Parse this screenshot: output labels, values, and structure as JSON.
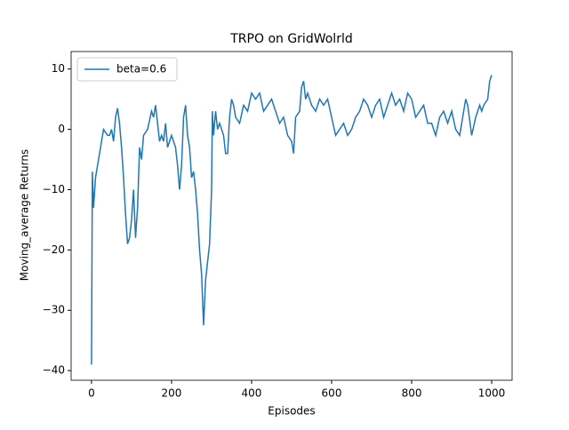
{
  "chart_data": {
    "type": "line",
    "title": "TRPO on GridWolrld",
    "xlabel": "Episodes",
    "ylabel": "Moving_average Returns",
    "x": [
      0,
      2,
      5,
      10,
      15,
      20,
      25,
      30,
      40,
      45,
      50,
      55,
      60,
      65,
      70,
      75,
      80,
      85,
      90,
      95,
      100,
      105,
      110,
      115,
      120,
      125,
      130,
      140,
      150,
      155,
      160,
      165,
      170,
      175,
      180,
      185,
      190,
      200,
      210,
      215,
      220,
      225,
      230,
      235,
      240,
      245,
      250,
      255,
      260,
      265,
      270,
      275,
      280,
      285,
      290,
      295,
      300,
      302,
      305,
      310,
      315,
      320,
      330,
      335,
      340,
      345,
      350,
      355,
      360,
      370,
      380,
      390,
      400,
      410,
      420,
      430,
      440,
      450,
      460,
      470,
      480,
      490,
      500,
      505,
      510,
      520,
      525,
      530,
      535,
      540,
      550,
      560,
      570,
      580,
      590,
      600,
      610,
      620,
      630,
      640,
      650,
      660,
      670,
      680,
      690,
      700,
      710,
      720,
      730,
      740,
      750,
      760,
      770,
      780,
      790,
      800,
      810,
      820,
      830,
      840,
      850,
      860,
      870,
      880,
      890,
      900,
      910,
      920,
      930,
      935,
      940,
      950,
      960,
      970,
      975,
      980,
      990,
      995,
      1000
    ],
    "series": [
      {
        "name": "beta=0.6",
        "color": "#1f77b4",
        "values": [
          -39,
          -7,
          -13,
          -8,
          -6,
          -4,
          -2,
          0,
          -1,
          -1,
          0,
          -2,
          2,
          3.5,
          1,
          -3,
          -8,
          -14,
          -19,
          -18,
          -15,
          -10,
          -18,
          -13,
          -3,
          -5,
          -1,
          0,
          3,
          2,
          4,
          1,
          -2,
          -1,
          -2,
          1,
          -3,
          -1,
          -3,
          -6,
          -10,
          -6,
          2,
          4,
          -1,
          -3,
          -8,
          -7,
          -10,
          -14,
          -20,
          -24,
          -32.5,
          -25,
          -22,
          -19,
          -10,
          3,
          -1,
          3,
          0,
          1,
          -1,
          -4,
          -4,
          2,
          5,
          4,
          2,
          1,
          4,
          3,
          6,
          5,
          6,
          3,
          4,
          5,
          3,
          1,
          2,
          -1,
          -2,
          -4,
          2,
          3,
          7,
          8,
          5,
          6,
          4,
          3,
          5,
          4,
          5,
          2,
          -1,
          0,
          1,
          -1,
          0,
          2,
          3,
          5,
          4,
          2,
          4,
          5,
          2,
          4,
          6,
          4,
          5,
          3,
          6,
          5,
          2,
          3,
          4,
          1,
          1,
          -1,
          2,
          3,
          1,
          3,
          0,
          -1,
          3,
          5,
          4,
          -1,
          2,
          4,
          3,
          4,
          5,
          8,
          9
        ]
      }
    ],
    "xlim": [
      -51,
      1051
    ],
    "ylim": [
      -41.6,
      12.9
    ],
    "xticks": [
      0,
      200,
      400,
      600,
      800,
      1000
    ],
    "yticks": [
      {
        "value": -40,
        "label": "−40"
      },
      {
        "value": -30,
        "label": "−30"
      },
      {
        "value": -20,
        "label": "−20"
      },
      {
        "value": -10,
        "label": "−10"
      },
      0,
      10
    ],
    "legend": "upper left"
  }
}
